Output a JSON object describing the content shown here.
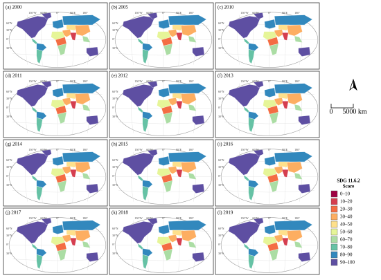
{
  "panels": [
    {
      "label": "(a) 2000"
    },
    {
      "label": "(b) 2005"
    },
    {
      "label": "(c) 2010"
    },
    {
      "label": "(d) 2011"
    },
    {
      "label": "(e) 2012"
    },
    {
      "label": "(f) 2013"
    },
    {
      "label": "(g) 2014"
    },
    {
      "label": "(h) 2015"
    },
    {
      "label": "(i) 2016"
    },
    {
      "label": "(j) 2017"
    },
    {
      "label": "(k) 2018"
    },
    {
      "label": "(l) 2019"
    }
  ],
  "graticule": {
    "lon": [
      "150°W",
      "60°W",
      "0°",
      "90°E",
      "180°"
    ],
    "lat": [
      "60°N",
      "30°N",
      "0°",
      "30°S"
    ]
  },
  "north": "N",
  "scale": {
    "start": "0",
    "end": "5000 km"
  },
  "legend": {
    "title": [
      "SDG 11.6.2",
      "Score"
    ],
    "classes": [
      {
        "label": "0–10",
        "color": "#9e0142"
      },
      {
        "label": "10–20",
        "color": "#d53e4f"
      },
      {
        "label": "20–30",
        "color": "#f46d43"
      },
      {
        "label": "30–40",
        "color": "#fdae61"
      },
      {
        "label": "40–50",
        "color": "#fee08b"
      },
      {
        "label": "50–60",
        "color": "#e6f598"
      },
      {
        "label": "60–70",
        "color": "#abdda4"
      },
      {
        "label": "70–80",
        "color": "#66c2a5"
      },
      {
        "label": "80–90",
        "color": "#3288bd"
      },
      {
        "label": "90–100",
        "color": "#5e4fa2"
      }
    ]
  }
}
